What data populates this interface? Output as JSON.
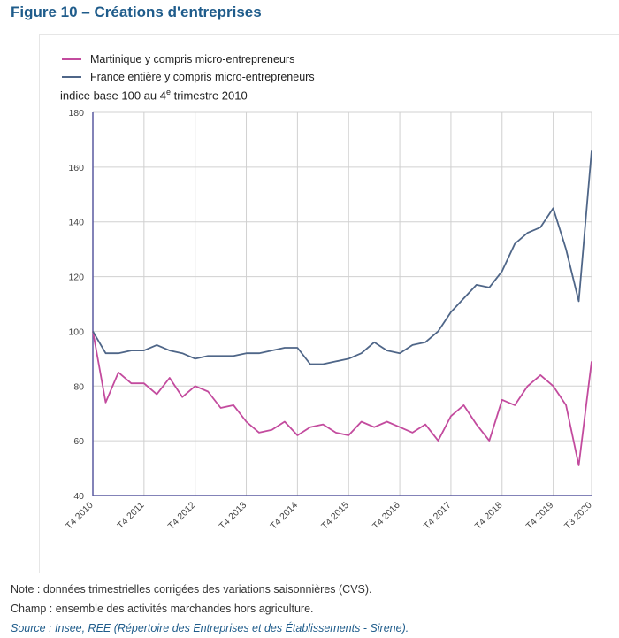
{
  "figure_title": "Figure 10 – Créations d'entreprises",
  "notes": {
    "note": "Note : données trimestrielles corrigées des variations saisonnières (CVS).",
    "champ": "Champ : ensemble des activités marchandes hors agriculture.",
    "source": "Source : Insee, REE (Répertoire des Entreprises et des Établissements - Sirene)."
  },
  "chart_data": {
    "type": "line",
    "title": "",
    "ylabel_main": "indice base 100 au 4",
    "ylabel_sup": "e",
    "ylabel_tail": " trimestre 2010",
    "ylim": [
      40,
      180
    ],
    "yticks": [
      40,
      60,
      80,
      100,
      120,
      140,
      160,
      180
    ],
    "grid": true,
    "legend_position": "top-left",
    "x_ticks": [
      {
        "label": "T4 2010",
        "q": 0
      },
      {
        "label": "T4 2011",
        "q": 4
      },
      {
        "label": "T4 2012",
        "q": 8
      },
      {
        "label": "T4 2013",
        "q": 12
      },
      {
        "label": "T4 2014",
        "q": 16
      },
      {
        "label": "T4 2015",
        "q": 20
      },
      {
        "label": "T4 2016",
        "q": 24
      },
      {
        "label": "T4 2017",
        "q": 28
      },
      {
        "label": "T4 2018",
        "q": 32
      },
      {
        "label": "T4 2019",
        "q": 36
      },
      {
        "label": "T3 2020",
        "q": 39
      }
    ],
    "series": [
      {
        "name": "Martinique y compris micro-entrepreneurs",
        "color": "#c34b9e",
        "values": [
          100,
          74,
          85,
          81,
          81,
          77,
          83,
          76,
          80,
          78,
          72,
          73,
          67,
          63,
          64,
          67,
          62,
          65,
          66,
          63,
          62,
          67,
          65,
          67,
          65,
          63,
          66,
          60,
          69,
          73,
          66,
          60,
          75,
          73,
          80,
          84,
          80,
          73,
          51,
          89
        ]
      },
      {
        "name": "France entière y compris micro-entrepreneurs",
        "color": "#4f6688",
        "values": [
          100,
          92,
          92,
          93,
          93,
          95,
          93,
          92,
          90,
          91,
          91,
          91,
          92,
          92,
          93,
          94,
          94,
          88,
          88,
          89,
          90,
          92,
          96,
          93,
          92,
          95,
          96,
          100,
          107,
          112,
          117,
          116,
          122,
          132,
          136,
          138,
          145,
          130,
          111,
          166
        ]
      }
    ]
  }
}
